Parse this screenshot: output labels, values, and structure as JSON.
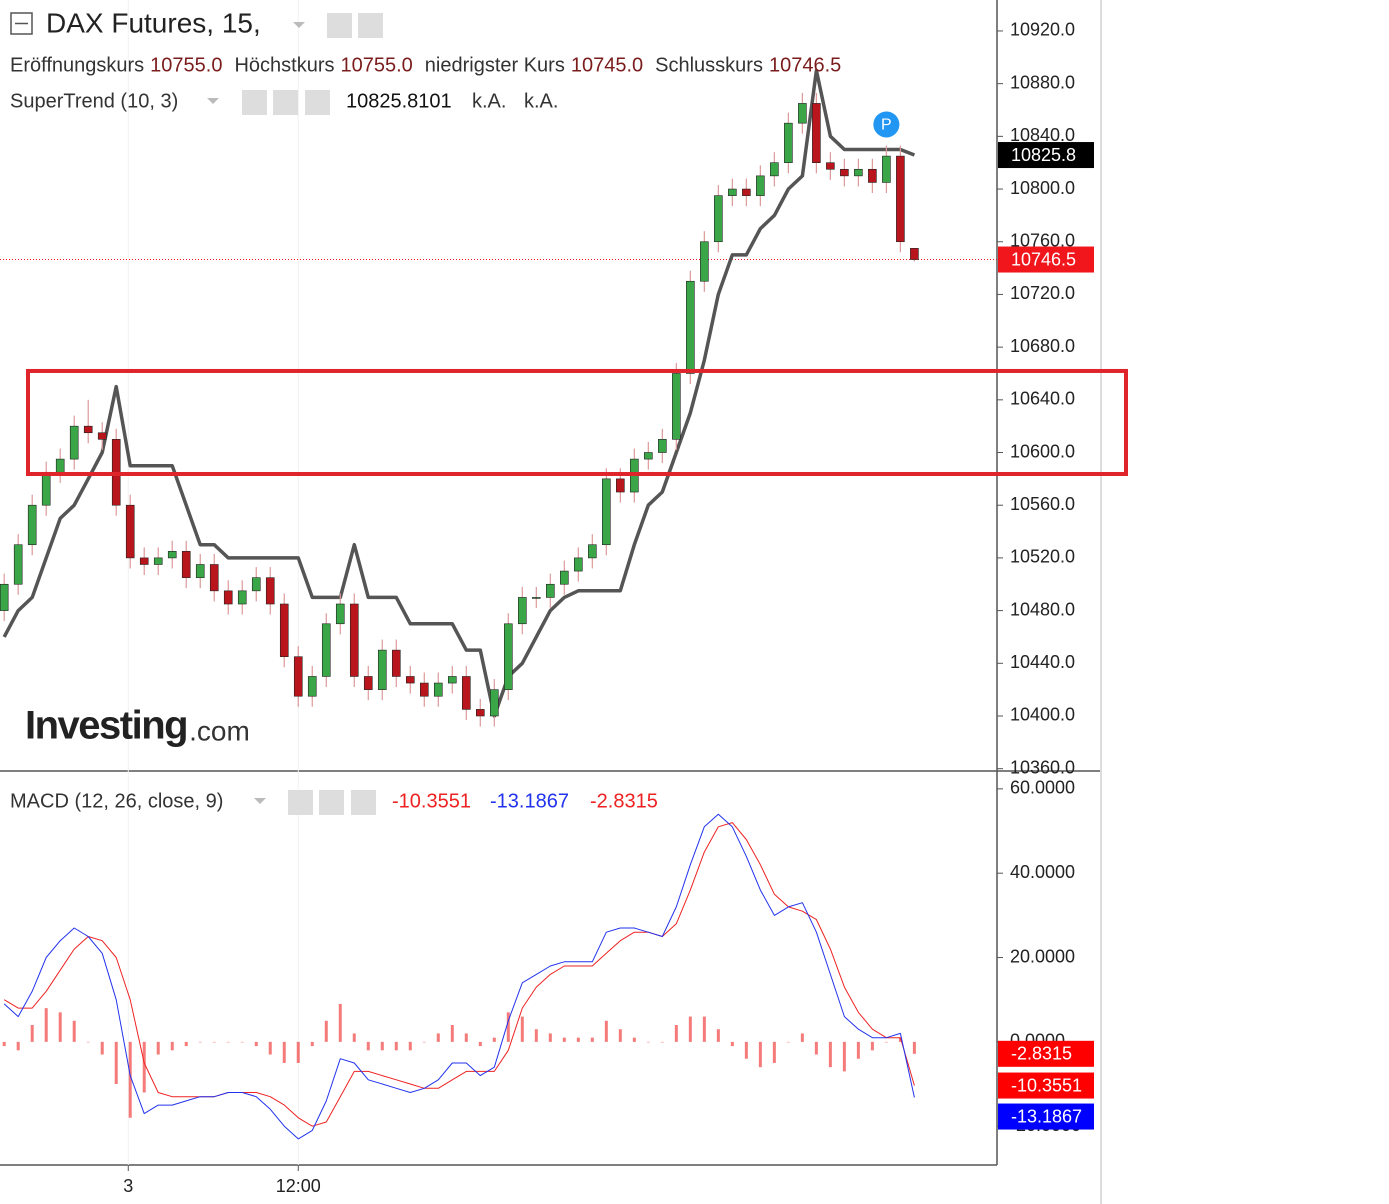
{
  "chart_data": {
    "type": "candlestick",
    "title": "DAX Futures, 15,",
    "ohlc_legend": [
      {
        "label": "Eröffnungskurs",
        "value": "10755.0"
      },
      {
        "label": "Höchstkurs",
        "value": "10755.0"
      },
      {
        "label": "niedrigster Kurs",
        "value": "10745.0"
      },
      {
        "label": "Schlusskurs",
        "value": "10746.5"
      }
    ],
    "watermark": {
      "brand": "Investing",
      "suffix": ".com"
    },
    "open": [
      10480,
      10500,
      10530,
      10560,
      10585,
      10595,
      10620,
      10615,
      10610,
      10560,
      10520,
      10515,
      10520,
      10525,
      10505,
      10515,
      10495,
      10485,
      10495,
      10505,
      10485,
      10445,
      10415,
      10430,
      10470,
      10485,
      10430,
      10420,
      10450,
      10430,
      10425,
      10415,
      10425,
      10430,
      10405,
      10400,
      10420,
      10470,
      10490,
      10490,
      10500,
      10510,
      10520,
      10530,
      10580,
      10570,
      10595,
      10600,
      10610,
      10660,
      10730,
      10760,
      10795,
      10800,
      10795,
      10810,
      10820,
      10850,
      10865,
      10820,
      10815,
      10810,
      10815,
      10805,
      10825,
      10755
    ],
    "high": [
      10508,
      10538,
      10568,
      10593,
      10603,
      10628,
      10640,
      10623,
      10618,
      10568,
      10528,
      10528,
      10533,
      10533,
      10523,
      10523,
      10503,
      10503,
      10513,
      10513,
      10493,
      10453,
      10438,
      10478,
      10493,
      10493,
      10438,
      10458,
      10458,
      10438,
      10433,
      10433,
      10438,
      10438,
      10413,
      10428,
      10478,
      10498,
      10498,
      10508,
      10518,
      10528,
      10538,
      10588,
      10588,
      10603,
      10608,
      10618,
      10668,
      10738,
      10768,
      10803,
      10808,
      10808,
      10818,
      10828,
      10858,
      10873,
      10873,
      10828,
      10823,
      10823,
      10823,
      10833,
      10833,
      10755
    ],
    "low": [
      10472,
      10492,
      10522,
      10552,
      10577,
      10587,
      10607,
      10602,
      10552,
      10512,
      10507,
      10507,
      10512,
      10497,
      10497,
      10487,
      10477,
      10477,
      10487,
      10477,
      10437,
      10407,
      10407,
      10422,
      10462,
      10422,
      10412,
      10412,
      10422,
      10417,
      10407,
      10407,
      10417,
      10397,
      10392,
      10392,
      10412,
      10462,
      10482,
      10482,
      10492,
      10502,
      10512,
      10522,
      10562,
      10562,
      10587,
      10592,
      10602,
      10652,
      10722,
      10752,
      10787,
      10787,
      10787,
      10802,
      10812,
      10842,
      10812,
      10807,
      10802,
      10802,
      10797,
      10797,
      10752,
      10745
    ],
    "close": [
      10500,
      10530,
      10560,
      10585,
      10595,
      10620,
      10615,
      10610,
      10560,
      10520,
      10515,
      10520,
      10525,
      10505,
      10515,
      10495,
      10485,
      10495,
      10505,
      10485,
      10445,
      10415,
      10430,
      10470,
      10485,
      10430,
      10420,
      10450,
      10430,
      10425,
      10415,
      10425,
      10430,
      10405,
      10400,
      10420,
      10470,
      10490,
      10490,
      10500,
      10510,
      10520,
      10530,
      10580,
      10570,
      10595,
      10600,
      10610,
      10660,
      10730,
      10760,
      10795,
      10800,
      10795,
      10810,
      10820,
      10850,
      10865,
      10820,
      10815,
      10810,
      10815,
      10805,
      10825,
      10760,
      10746.5
    ],
    "up_color": "#3aa647",
    "down_color": "#b8161c",
    "last_price_color": "#f0161c",
    "xlim": [
      -0.3,
      70.9
    ],
    "xticks": [
      {
        "value": 8.86,
        "label": "3"
      },
      {
        "value": 21,
        "label": "12:00"
      }
    ],
    "ylim": [
      10359,
      10943.5
    ],
    "yticks": [
      {
        "value": 10360,
        "label": "10360.0"
      },
      {
        "value": 10400,
        "label": "10400.0"
      },
      {
        "value": 10440,
        "label": "10440.0"
      },
      {
        "value": 10480,
        "label": "10480.0"
      },
      {
        "value": 10520,
        "label": "10520.0"
      },
      {
        "value": 10560,
        "label": "10560.0"
      },
      {
        "value": 10600,
        "label": "10600.0"
      },
      {
        "value": 10640,
        "label": "10640.0"
      },
      {
        "value": 10680,
        "label": "10680.0"
      },
      {
        "value": 10720,
        "label": "10720.0"
      },
      {
        "value": 10760,
        "label": "10760.0"
      },
      {
        "value": 10800,
        "label": "10800.0"
      },
      {
        "value": 10840,
        "label": "10840.0"
      },
      {
        "value": 10880,
        "label": "10880.0"
      },
      {
        "value": 10920,
        "label": "10920.0"
      }
    ],
    "supertrend": {
      "name": "SuperTrend (10, 3)",
      "color": "#555555",
      "values": [
        10460,
        10480,
        10490,
        10520,
        10550,
        10560,
        10580,
        10600,
        10650,
        10590,
        10590,
        10590,
        10590,
        10560,
        10530,
        10530,
        10520,
        10520,
        10520,
        10520,
        10520,
        10520,
        10490,
        10490,
        10490,
        10530,
        10490,
        10490,
        10490,
        10470,
        10470,
        10470,
        10470,
        10450,
        10450,
        10400,
        10430,
        10440,
        10460,
        10480,
        10490,
        10495,
        10495,
        10495,
        10495,
        10530,
        10560,
        10570,
        10600,
        10630,
        10670,
        10720,
        10750,
        10750,
        10770,
        10780,
        10800,
        10810,
        10890,
        10840,
        10830,
        10830,
        10830,
        10830,
        10830,
        10825.8101
      ],
      "last_label": "10825.8",
      "extra_labels": [
        "k.A.",
        "k.A."
      ]
    },
    "marker": {
      "label": "P",
      "x": 63,
      "price": 10849,
      "color": "#2196f3"
    },
    "zone": {
      "low": 10583.7,
      "high": 10661.9,
      "color": "#e0242b"
    },
    "macd": {
      "name": "MACD (12, 26, close, 9)",
      "ylim": [
        -29.2,
        64
      ],
      "yticks": [
        {
          "value": -20,
          "label": "-20.0000"
        },
        {
          "value": 0,
          "label": "0.0000"
        },
        {
          "value": 20,
          "label": "20.0000"
        },
        {
          "value": 40,
          "label": "40.0000"
        },
        {
          "value": 60,
          "label": "60.0000"
        }
      ],
      "signal": {
        "color": "#ee2222",
        "values": [
          10,
          8,
          8,
          12,
          17,
          22,
          25,
          24,
          20,
          10,
          -5,
          -12,
          -13,
          -13,
          -13,
          -13,
          -12,
          -12,
          -12,
          -13,
          -15,
          -18,
          -20,
          -19,
          -13,
          -7,
          -7,
          -8,
          -9,
          -10,
          -11,
          -11,
          -9,
          -7,
          -7,
          -7,
          -2,
          8,
          13,
          16,
          18,
          18,
          18,
          21,
          24,
          26,
          26,
          25,
          28,
          36,
          45,
          51,
          52,
          48,
          42,
          35,
          32,
          31,
          29,
          22,
          13,
          7,
          3,
          1,
          1,
          -10.3551
        ]
      },
      "line": {
        "color": "#2233ee",
        "values": [
          9,
          6,
          12,
          20,
          24,
          27,
          25,
          21,
          10,
          -8,
          -17,
          -15,
          -15,
          -14,
          -13,
          -13,
          -12,
          -12,
          -13,
          -16,
          -20,
          -23,
          -21,
          -14,
          -4,
          -5,
          -9,
          -10,
          -11,
          -12,
          -11,
          -9,
          -5,
          -5,
          -8,
          -6,
          5,
          14,
          16,
          18,
          19,
          19,
          19,
          26,
          27,
          27,
          26,
          25,
          32,
          42,
          51,
          54,
          51,
          44,
          36,
          30,
          32,
          33,
          26,
          16,
          6,
          3,
          1,
          1,
          2,
          -13.1867
        ]
      },
      "histogram": {
        "color": "#ee2222",
        "values": [
          -1,
          -2,
          4,
          8,
          7,
          5,
          0,
          -3,
          -10,
          -18,
          -12,
          -3,
          -2,
          -1,
          0,
          0,
          0,
          0,
          -1,
          -3,
          -5,
          -5,
          -1,
          5,
          9,
          2,
          -2,
          -2,
          -2,
          -2,
          0,
          2,
          4,
          2,
          -1,
          1,
          7,
          6,
          3,
          2,
          1,
          1,
          1,
          5,
          3,
          1,
          0,
          0,
          4,
          6,
          6,
          3,
          -1,
          -4,
          -6,
          -5,
          0,
          2,
          -3,
          -6,
          -7,
          -4,
          -2,
          0,
          1,
          -2.8315
        ]
      }
    }
  }
}
